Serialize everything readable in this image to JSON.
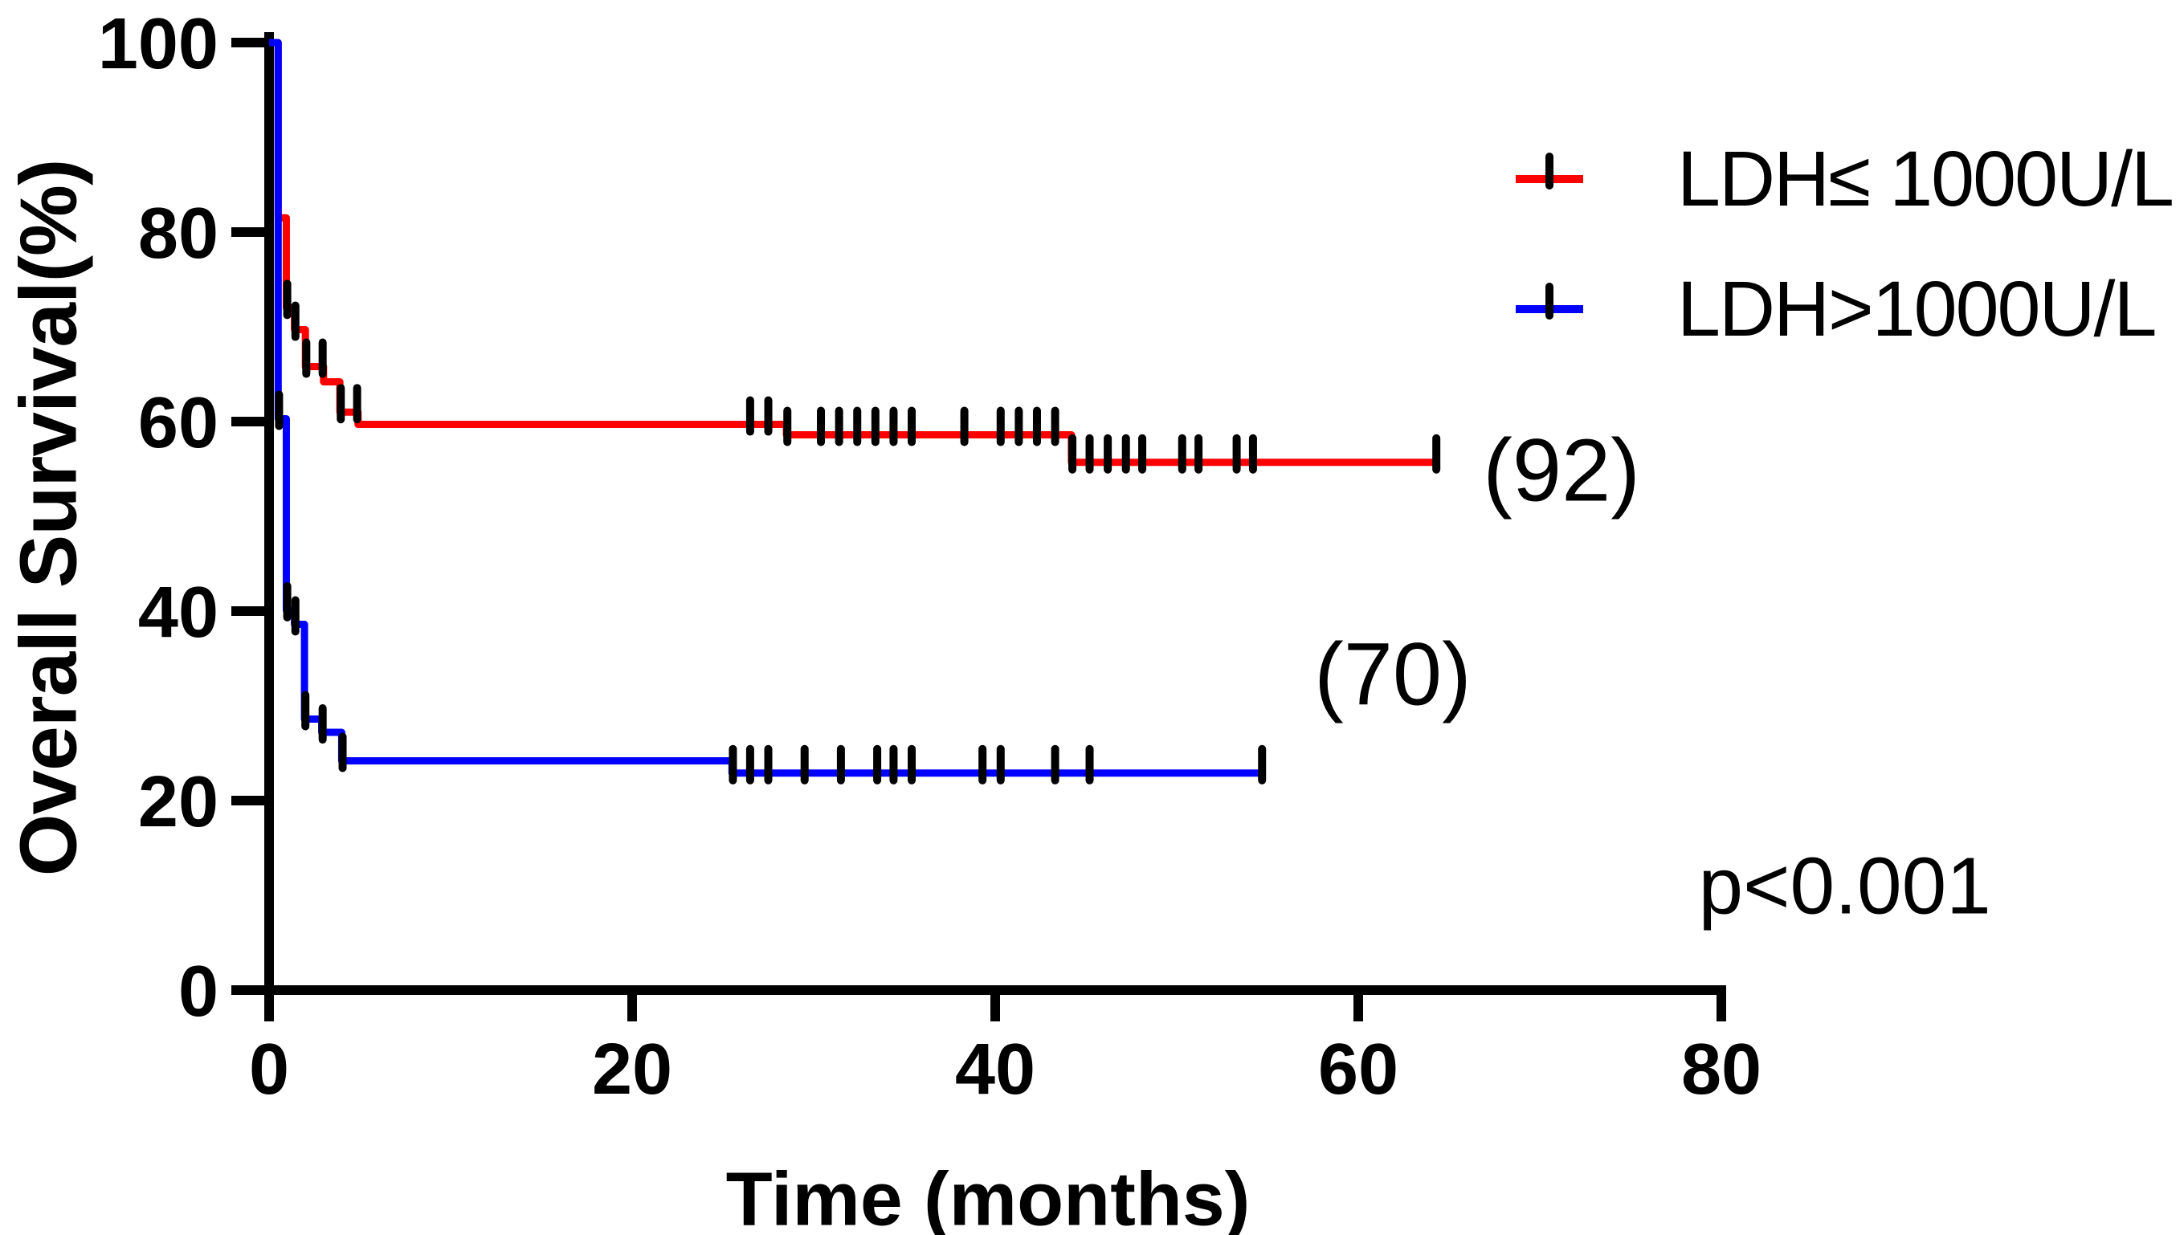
{
  "chart_data": {
    "type": "line",
    "subtype": "kaplan-meier-step",
    "title": "",
    "xlabel": "Time (months)",
    "ylabel": "Overall Survival(%)",
    "xlim": [
      0,
      80
    ],
    "ylim": [
      0,
      100
    ],
    "xticks": [
      0,
      20,
      40,
      60,
      80
    ],
    "yticks": [
      0,
      20,
      40,
      60,
      80,
      100
    ],
    "grid": false,
    "legend_position": "top-right",
    "p_value": "p<0.001",
    "axis_color": "#000000",
    "censor_color": "#000000",
    "series": [
      {
        "name": "LDH≤ 1000U/L",
        "color": "#ff0000",
        "n_label": "(92)",
        "steps": [
          [
            0,
            100
          ],
          [
            0.5,
            81.5
          ],
          [
            0.95,
            72
          ],
          [
            1.4,
            69.7
          ],
          [
            2.0,
            65.8
          ],
          [
            3.0,
            64.2
          ],
          [
            3.9,
            61.0
          ],
          [
            4.9,
            59.7
          ],
          [
            28.5,
            58.6
          ],
          [
            44.2,
            55.7
          ]
        ],
        "end_t": 64.3,
        "censors": [
          [
            1.0,
            72
          ],
          [
            1.45,
            69.7
          ],
          [
            2.05,
            65.8
          ],
          [
            2.95,
            65.8
          ],
          [
            3.95,
            61.0
          ],
          [
            4.85,
            61.0
          ],
          [
            26.5,
            59.7
          ],
          [
            27.5,
            59.7
          ],
          [
            28.55,
            58.6
          ],
          [
            30.4,
            58.6
          ],
          [
            31.4,
            58.6
          ],
          [
            32.4,
            58.6
          ],
          [
            33.4,
            58.6
          ],
          [
            34.4,
            58.6
          ],
          [
            35.4,
            58.6
          ],
          [
            38.3,
            58.6
          ],
          [
            40.3,
            58.6
          ],
          [
            41.3,
            58.6
          ],
          [
            42.3,
            58.6
          ],
          [
            43.3,
            58.6
          ],
          [
            44.25,
            55.7
          ],
          [
            45.2,
            55.7
          ],
          [
            46.2,
            55.7
          ],
          [
            47.2,
            55.7
          ],
          [
            48.1,
            55.7
          ],
          [
            50.3,
            55.7
          ],
          [
            51.2,
            55.7
          ],
          [
            53.3,
            55.7
          ],
          [
            54.2,
            55.7
          ],
          [
            64.3,
            55.7
          ]
        ]
      },
      {
        "name": "LDH>1000U/L",
        "color": "#0000ff",
        "n_label": "(70)",
        "steps": [
          [
            0,
            100
          ],
          [
            0.5,
            60.3
          ],
          [
            0.95,
            40.1
          ],
          [
            1.4,
            38.6
          ],
          [
            1.95,
            28.6
          ],
          [
            2.9,
            27.2
          ],
          [
            4.0,
            24.2
          ],
          [
            25.5,
            22.9
          ]
        ],
        "end_t": 54.7,
        "censors": [
          [
            0.55,
            60.3
          ],
          [
            1.0,
            40.1
          ],
          [
            1.45,
            38.6
          ],
          [
            2.0,
            28.6
          ],
          [
            2.95,
            27.2
          ],
          [
            4.05,
            24.2
          ],
          [
            25.55,
            22.9
          ],
          [
            26.5,
            22.9
          ],
          [
            27.5,
            22.9
          ],
          [
            29.5,
            22.9
          ],
          [
            31.5,
            22.9
          ],
          [
            33.5,
            22.9
          ],
          [
            34.4,
            22.9
          ],
          [
            35.4,
            22.9
          ],
          [
            39.3,
            22.9
          ],
          [
            40.3,
            22.9
          ],
          [
            43.3,
            22.9
          ],
          [
            45.2,
            22.9
          ],
          [
            54.7,
            22.9
          ]
        ]
      }
    ],
    "annotations": [
      {
        "text": "(92)",
        "series": "LDH≤ 1000U/L",
        "t": 71.2,
        "s": 54.8
      },
      {
        "text": "(70)",
        "series": "LDH>1000U/L",
        "t": 61.9,
        "s": 33.3
      },
      {
        "text": "p<0.001",
        "series": null,
        "t": 86.8,
        "s": 10.9
      }
    ]
  }
}
